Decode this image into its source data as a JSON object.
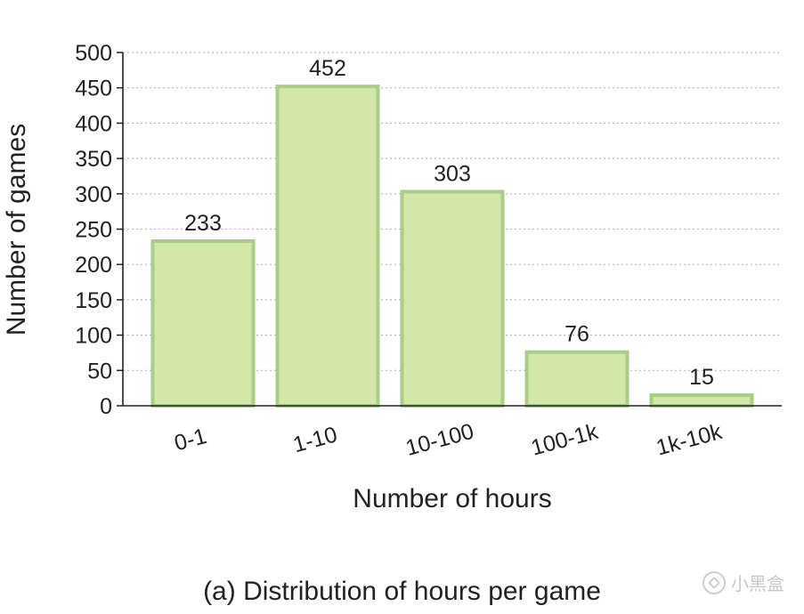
{
  "chart_data": {
    "type": "bar",
    "categories": [
      "0-1",
      "1-10",
      "10-100",
      "100-1k",
      "1k-10k"
    ],
    "values": [
      233,
      452,
      303,
      76,
      15
    ],
    "data_labels": [
      "233",
      "452",
      "303",
      "76",
      "15"
    ],
    "xlabel": "Number of hours",
    "ylabel": "Number of games",
    "ylim": [
      0,
      500
    ],
    "yticks": [
      0,
      50,
      100,
      150,
      200,
      250,
      300,
      350,
      400,
      450,
      500
    ],
    "grid": "horizontal dotted",
    "bar_color": "#d2e7a8",
    "bar_edge_color": "#a9cc86",
    "grid_color": "#bbbbbb"
  },
  "caption": "(a) Distribution of hours per game",
  "watermark": "小黑盒"
}
